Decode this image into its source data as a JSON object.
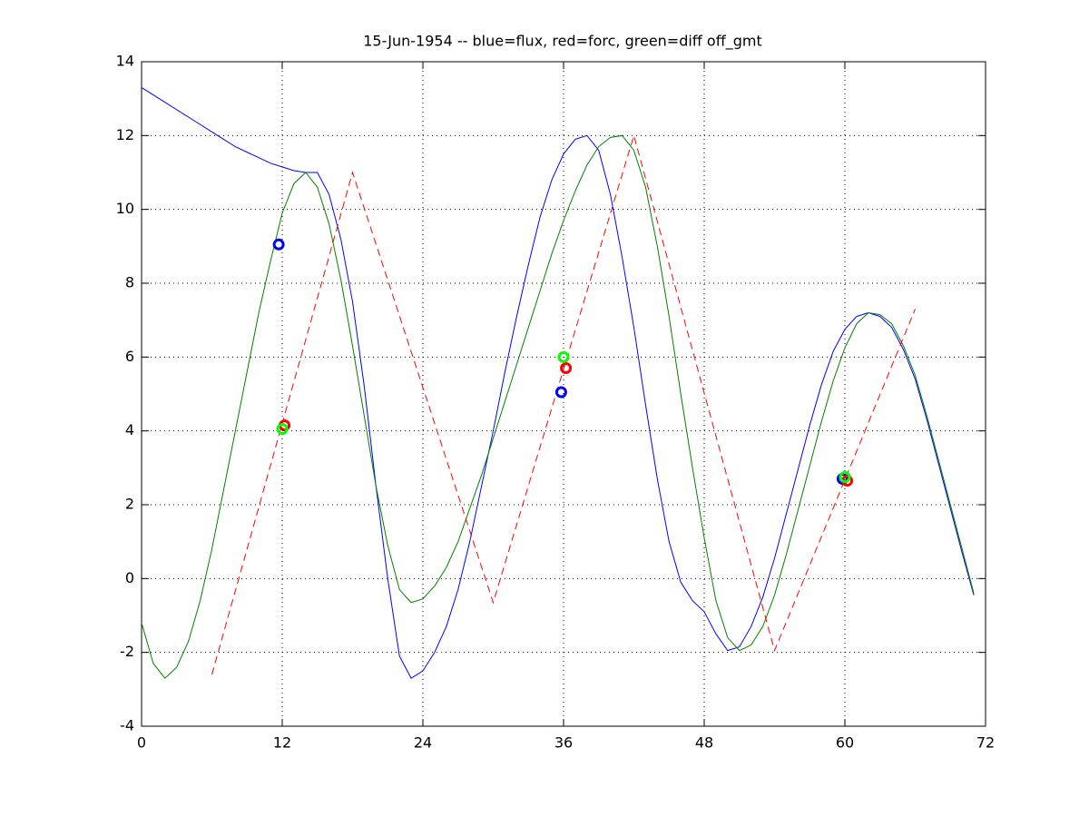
{
  "chart_data": {
    "type": "line",
    "title": "15-Jun-1954 -- blue=flux, red=forc, green=diff off_gmt",
    "xlim": [
      0,
      72
    ],
    "xticks": [
      0,
      12,
      24,
      36,
      48,
      60,
      72
    ],
    "ylim": [
      -4,
      14
    ],
    "yticks": [
      -4,
      -2,
      0,
      2,
      4,
      6,
      8,
      10,
      12,
      14
    ],
    "grid": true,
    "series": [
      {
        "color": "#0000ff",
        "style": "solid",
        "x": [
          0,
          1,
          2,
          3,
          4,
          5,
          6,
          7,
          8,
          9,
          10,
          11,
          12,
          13,
          14,
          15,
          16,
          17,
          18,
          19,
          20,
          21,
          22,
          23,
          24,
          25,
          26,
          27,
          28,
          29,
          30,
          31,
          32,
          33,
          34,
          35,
          36,
          37,
          38,
          39,
          40,
          41,
          42,
          43,
          44,
          45,
          46,
          47,
          48,
          49,
          50,
          51,
          52,
          53,
          54,
          55,
          56,
          57,
          58,
          59,
          60,
          61,
          62,
          63,
          64,
          65,
          66,
          67,
          68,
          69,
          70,
          71
        ],
        "values": [
          13.3,
          13.1,
          12.9,
          12.7,
          12.5,
          12.3,
          12.1,
          11.9,
          11.7,
          11.55,
          11.4,
          11.25,
          11.15,
          11.05,
          11.0,
          11.0,
          10.4,
          9.2,
          7.5,
          5.2,
          2.5,
          0,
          -2.1,
          -2.7,
          -2.5,
          -2.0,
          -1.3,
          -0.3,
          1.0,
          2.5,
          4.0,
          5.6,
          7.1,
          8.5,
          9.8,
          10.8,
          11.5,
          11.9,
          12.0,
          11.6,
          10.4,
          8.7,
          6.8,
          4.7,
          2.7,
          1.0,
          -0.1,
          -0.6,
          -0.9,
          -1.5,
          -1.95,
          -1.85,
          -1.3,
          -0.5,
          0.55,
          1.75,
          2.95,
          4.15,
          5.25,
          6.15,
          6.75,
          7.1,
          7.2,
          7.1,
          6.8,
          6.2,
          5.4,
          4.3,
          3.1,
          1.9,
          0.7,
          -0.45
        ]
      },
      {
        "color": "#008000",
        "style": "solid",
        "x": [
          0,
          1,
          2,
          3,
          4,
          5,
          6,
          7,
          8,
          9,
          10,
          11,
          12,
          13,
          14,
          15,
          16,
          17,
          18,
          19,
          20,
          21,
          22,
          23,
          24,
          25,
          26,
          27,
          28,
          29,
          30,
          31,
          32,
          33,
          34,
          35,
          36,
          37,
          38,
          39,
          40,
          41,
          42,
          43,
          44,
          45,
          46,
          47,
          48,
          49,
          50,
          51,
          52,
          53,
          54,
          55,
          56,
          57,
          58,
          59,
          60,
          61,
          62,
          63,
          64,
          65,
          66,
          67,
          68,
          69,
          70,
          71
        ],
        "values": [
          -1.2,
          -2.3,
          -2.7,
          -2.4,
          -1.7,
          -0.6,
          0.8,
          2.4,
          4.0,
          5.6,
          7.2,
          8.6,
          9.9,
          10.7,
          11.0,
          10.6,
          9.6,
          8.1,
          6.3,
          4.4,
          2.5,
          0.9,
          -0.3,
          -0.65,
          -0.55,
          -0.2,
          0.3,
          1.0,
          1.9,
          2.8,
          3.8,
          4.8,
          5.8,
          6.8,
          7.8,
          8.8,
          9.7,
          10.5,
          11.2,
          11.7,
          11.95,
          12.0,
          11.6,
          10.6,
          9.0,
          7.1,
          5.0,
          3.0,
          1.1,
          -0.6,
          -1.6,
          -1.95,
          -1.8,
          -1.3,
          -0.45,
          0.65,
          1.85,
          3.05,
          4.25,
          5.35,
          6.25,
          6.9,
          7.2,
          7.15,
          6.9,
          6.3,
          5.5,
          4.4,
          3.2,
          2.0,
          0.8,
          -0.4
        ]
      },
      {
        "color": "#ff0000",
        "style": "dashed",
        "x": [
          6,
          18,
          30,
          42,
          54,
          66
        ],
        "values": [
          -2.6,
          11.0,
          -0.65,
          12.0,
          -1.95,
          7.3
        ]
      },
      {
        "color": "#0000ff",
        "style": "marker",
        "x": [
          11.7,
          35.8,
          59.8
        ],
        "values": [
          9.05,
          5.05,
          2.7
        ]
      },
      {
        "color": "#ff0000",
        "style": "marker",
        "x": [
          12.2,
          36.2,
          60.2
        ],
        "values": [
          4.15,
          5.7,
          2.65
        ]
      },
      {
        "color": "#00ff00",
        "style": "marker",
        "x": [
          12,
          36,
          60
        ],
        "values": [
          4.05,
          6.0,
          2.75
        ]
      }
    ]
  }
}
